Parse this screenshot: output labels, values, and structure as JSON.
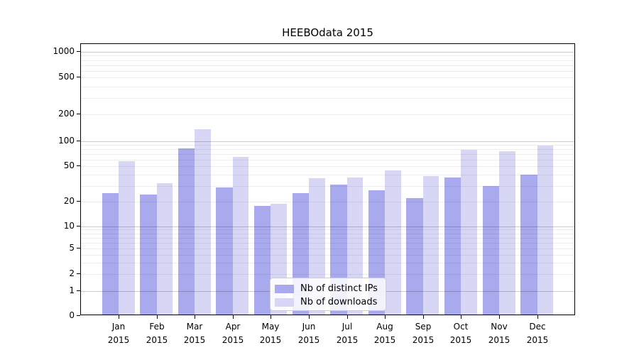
{
  "chart_data": {
    "type": "bar",
    "title": "HEEBOdata 2015",
    "categories": [
      "Jan 2015",
      "Feb 2015",
      "Mar 2015",
      "Apr 2015",
      "May 2015",
      "Jun 2015",
      "Jul 2015",
      "Aug 2015",
      "Sep 2015",
      "Oct 2015",
      "Nov 2015",
      "Dec 2015"
    ],
    "series": [
      {
        "name": "Nb of distinct IPs",
        "color": "#a9a9ed",
        "values": [
          24,
          23,
          78,
          28,
          17,
          24,
          30,
          26,
          21,
          36,
          29,
          39
        ]
      },
      {
        "name": "Nb of downloads",
        "color": "#d7d7f5",
        "values": [
          55,
          31,
          130,
          62,
          18,
          35,
          36,
          43,
          37,
          75,
          73,
          85
        ]
      }
    ],
    "yscale": "symlog",
    "ylim": [
      0,
      1000
    ],
    "yticks": [
      0,
      1,
      2,
      5,
      10,
      20,
      50,
      100,
      200,
      500,
      1000
    ],
    "xlabel": "",
    "ylabel": "",
    "grid": true,
    "legend_position": "lower center"
  },
  "colors": {
    "bar_distinct_ips": "#a9a9ed",
    "bar_downloads": "#d7d7f5",
    "grid_major": "rgba(0,0,0,0.20)",
    "grid_minor": "rgba(0,0,0,0.07)",
    "axis": "#000000",
    "legend_border": "#cccccc"
  }
}
